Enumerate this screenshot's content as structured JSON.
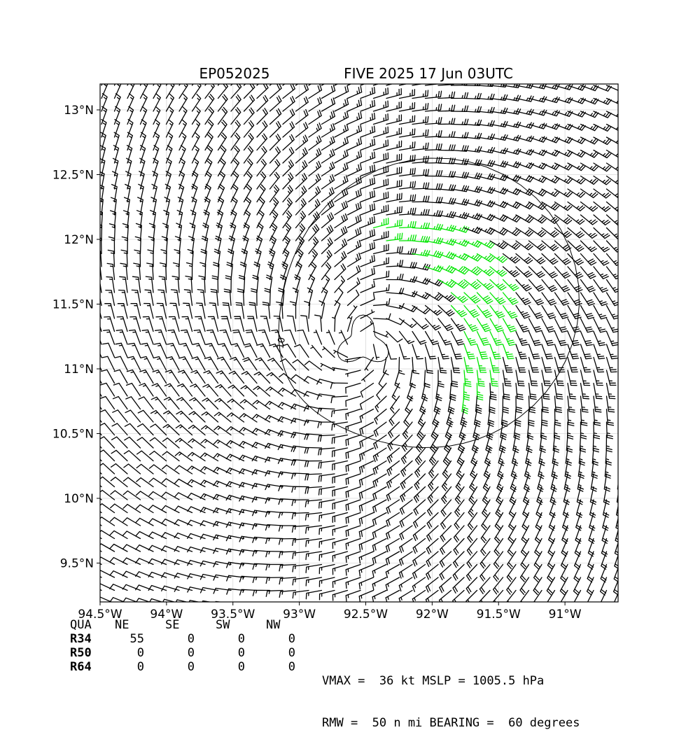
{
  "chart_data": {
    "type": "wind_barb_map",
    "title_left": "EP052025",
    "title_right": "FIVE 2025 17 Jun 03UTC",
    "xlim": [
      -94.5,
      -90.6
    ],
    "ylim": [
      9.2,
      13.2
    ],
    "x_ticks": [
      -94.5,
      -94.0,
      -93.5,
      -93.0,
      -92.5,
      -92.0,
      -91.5,
      -91.0
    ],
    "x_tick_labels": [
      "94.5°W",
      "94°W",
      "93.5°W",
      "93°W",
      "92.5°W",
      "92°W",
      "91.5°W",
      "91°W"
    ],
    "y_ticks": [
      9.5,
      10.0,
      10.5,
      11.0,
      11.5,
      12.0,
      12.5,
      13.0
    ],
    "y_tick_labels": [
      "9.5°N",
      "10°N",
      "10.5°N",
      "11°N",
      "11.5°N",
      "12°N",
      "12.5°N",
      "13°N"
    ],
    "grid": true,
    "storm_center": {
      "lon": -92.52,
      "lat": 11.2
    },
    "contour": {
      "level": 10,
      "label": "10"
    },
    "barb_colors": {
      "below_34kt": "#000000",
      "r34_to_r50": "#00e600",
      "r50_to_r64": "#e6b800"
    },
    "radii_table": {
      "header": [
        "QUA",
        "NE",
        "SE",
        "SW",
        "NW"
      ],
      "rows": [
        {
          "label": "R34",
          "values": [
            "55",
            "0",
            "0",
            "0"
          ]
        },
        {
          "label": "R50",
          "values": [
            "0",
            "0",
            "0",
            "0"
          ]
        },
        {
          "label": "R64",
          "values": [
            "0",
            "0",
            "0",
            "0"
          ]
        }
      ]
    },
    "summary": {
      "line1": "VMAX =  36 kt MSLP = 1005.5 hPa",
      "line2": "RMW =  50 n mi BEARING =  60 degrees"
    },
    "vmax_kt": 36,
    "mslp_hpa": 1005.5,
    "rmw_nmi": 50,
    "bearing_deg": 60
  }
}
